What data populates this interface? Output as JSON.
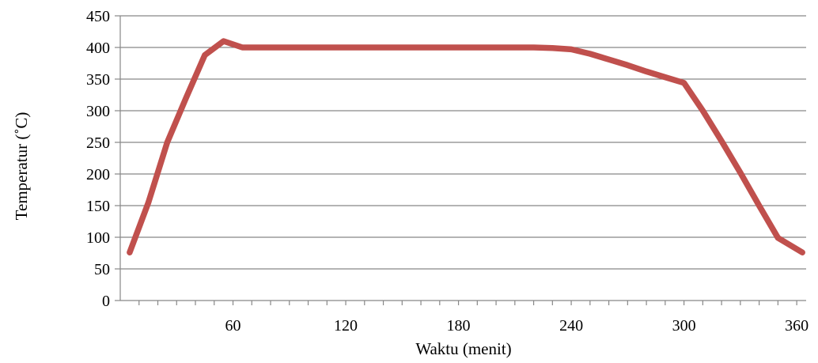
{
  "chart_data": {
    "type": "line",
    "xlabel": "Waktu (menit)",
    "ylabel": "Temperatur (˚C)",
    "xlim": [
      0,
      365
    ],
    "ylim": [
      0,
      450
    ],
    "xticks": [
      60,
      120,
      180,
      240,
      300,
      360
    ],
    "yticks": [
      0,
      50,
      100,
      150,
      200,
      250,
      300,
      350,
      400,
      450
    ],
    "grid": "horizontal",
    "legend": "none",
    "series": [
      {
        "color": "#c0504d",
        "points": [
          [
            5,
            76
          ],
          [
            15,
            155
          ],
          [
            25,
            250
          ],
          [
            35,
            320
          ],
          [
            45,
            388
          ],
          [
            55,
            410
          ],
          [
            65,
            400
          ],
          [
            80,
            400
          ],
          [
            100,
            400
          ],
          [
            120,
            400
          ],
          [
            140,
            400
          ],
          [
            160,
            400
          ],
          [
            180,
            400
          ],
          [
            200,
            400
          ],
          [
            220,
            400
          ],
          [
            230,
            399
          ],
          [
            240,
            397
          ],
          [
            250,
            390
          ],
          [
            260,
            381
          ],
          [
            270,
            372
          ],
          [
            280,
            362
          ],
          [
            290,
            353
          ],
          [
            300,
            344
          ],
          [
            310,
            300
          ],
          [
            320,
            252
          ],
          [
            330,
            202
          ],
          [
            340,
            150
          ],
          [
            350,
            99
          ],
          [
            363,
            76
          ]
        ]
      }
    ]
  }
}
